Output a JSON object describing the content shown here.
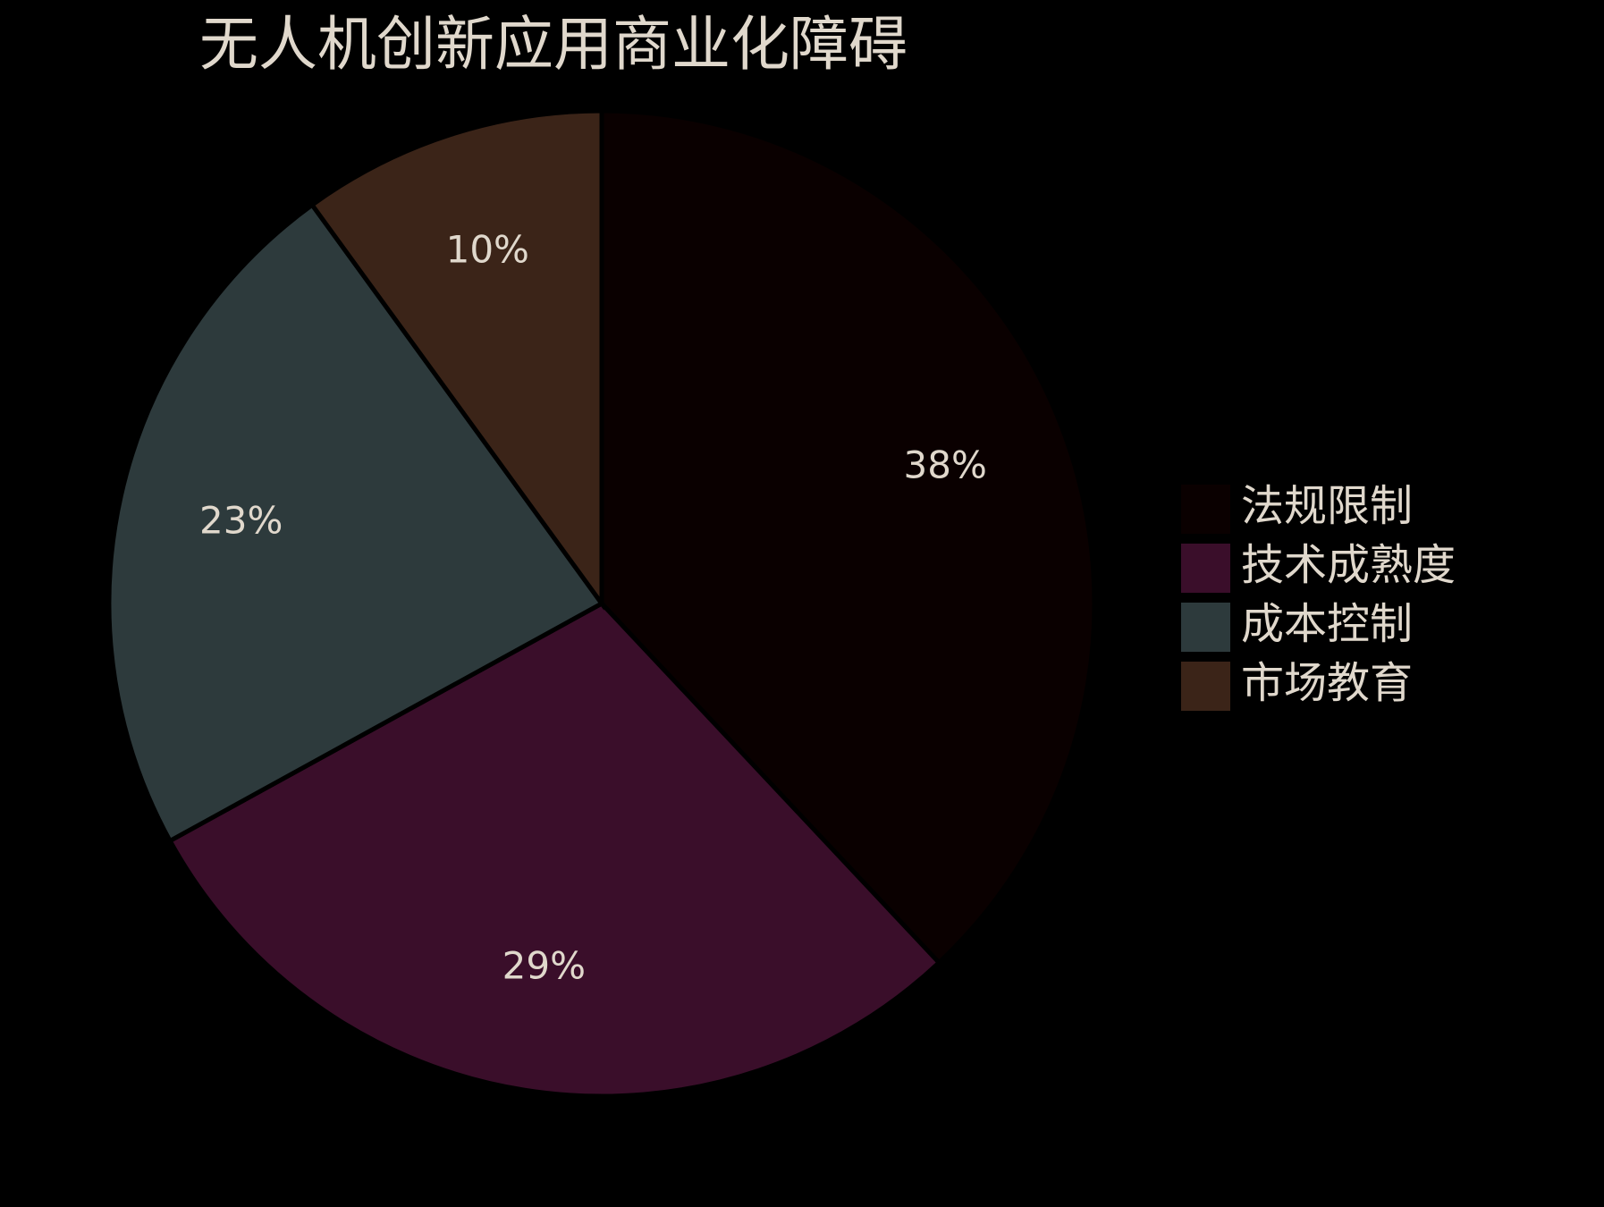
{
  "chart_data": {
    "type": "pie",
    "title": "无人机创新应用商业化障碍",
    "categories": [
      "法规限制",
      "技术成熟度",
      "成本控制",
      "市场教育"
    ],
    "values": [
      38,
      29,
      23,
      10
    ],
    "value_labels": [
      "38%",
      "29%",
      "23%",
      "10%"
    ],
    "colors": [
      "#0a0000",
      "#3a0e2a",
      "#2d3a3c",
      "#3b2418"
    ],
    "legend": "right"
  }
}
